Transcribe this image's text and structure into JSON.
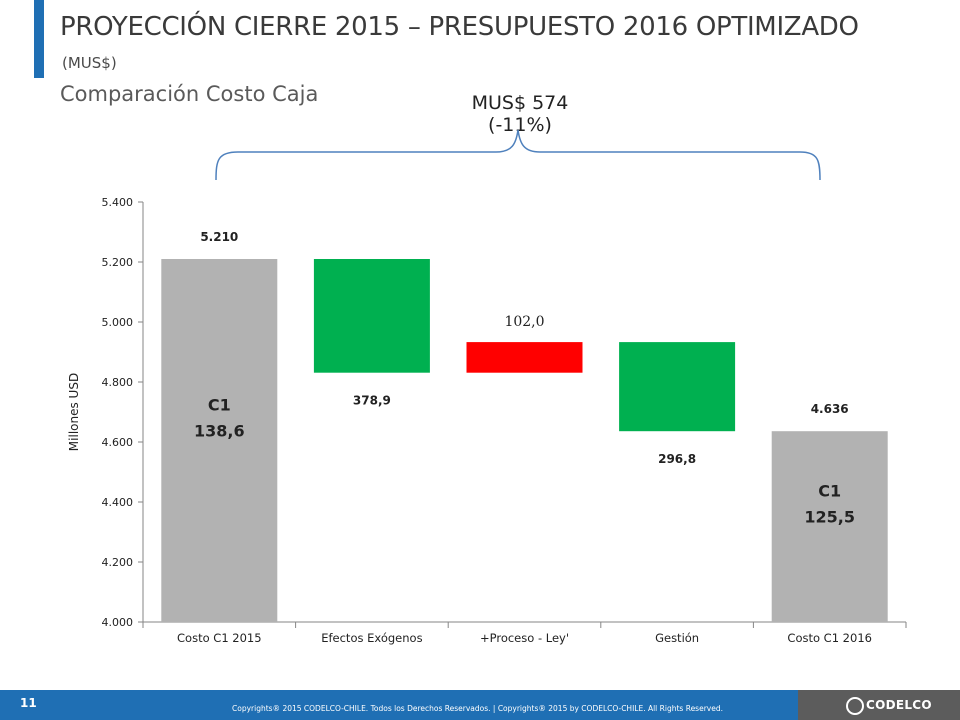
{
  "header": {
    "title": "PROYECCIÓN  CIERRE 2015 – PRESUPUESTO 2016 OPTIMIZADO",
    "unit": "(MUS$)",
    "subtitle": "Comparación Costo Caja",
    "bracket_label": "MUS$ 574 (-11%)"
  },
  "chart_data": {
    "type": "waterfall",
    "ylabel": "Millones USD",
    "ylim": [
      4000,
      5400
    ],
    "yticks": [
      4000,
      4200,
      4400,
      4600,
      4800,
      5000,
      5200,
      5400
    ],
    "ytick_labels": [
      "4.000",
      "4.200",
      "4.400",
      "4.600",
      "4.800",
      "5.000",
      "5.200",
      "5.400"
    ],
    "categories": [
      "Costo C1 2015",
      "Efectos Exógenos",
      "+Proceso - Ley'",
      "Gestión",
      "Costo C1 2016"
    ],
    "bars": [
      {
        "kind": "total",
        "bottom": 4000,
        "top": 5210,
        "color": "#b2b2b2",
        "label": "5.210",
        "inner_label": "C1",
        "inner_value": "138,6"
      },
      {
        "kind": "decrease",
        "bottom": 4831,
        "top": 5210,
        "color": "#00b050",
        "label": "378,9"
      },
      {
        "kind": "increase",
        "bottom": 4831,
        "top": 4933,
        "color": "#ff0000",
        "label": "102,0"
      },
      {
        "kind": "decrease",
        "bottom": 4636,
        "top": 4933,
        "color": "#00b050",
        "label": "296,8"
      },
      {
        "kind": "total",
        "bottom": 4000,
        "top": 4636,
        "color": "#b2b2b2",
        "label": "4.636",
        "inner_label": "C1",
        "inner_value": "125,5"
      }
    ]
  },
  "footer": {
    "page_number": "11",
    "copyright": "Copyrights® 2015 CODELCO-CHILE. Todos los Derechos Reservados. | Copyrights® 2015 by CODELCO-CHILE. All Rights Reserved.",
    "logo_text": "CODELCO"
  },
  "colors": {
    "accent": "#1f6fb4",
    "total_bar": "#b2b2b2",
    "decrease": "#00b050",
    "increase": "#ff0000",
    "bracket": "#4f81bd"
  }
}
